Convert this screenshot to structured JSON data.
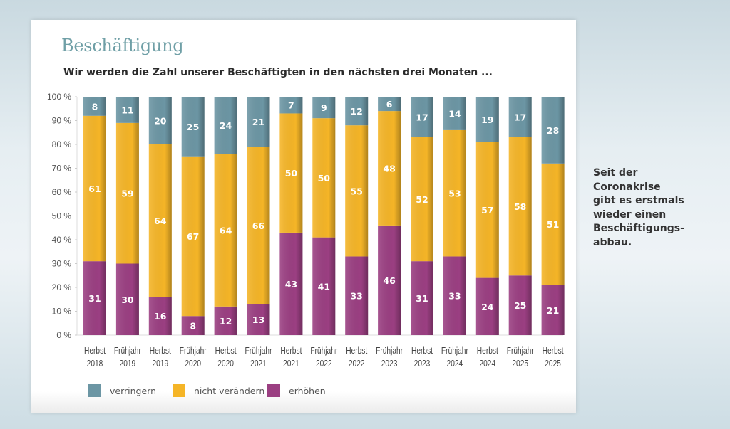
{
  "header": {
    "title": "Beschäftigung",
    "subtitle": "Wir werden die Zahl unserer Beschäftigten in den nächsten drei Monaten ..."
  },
  "side_note": {
    "lines": [
      "Seit der",
      "Coronakrise",
      "gibt es erstmals",
      "wieder einen",
      "Beschäftigungs-",
      "abbau."
    ]
  },
  "chart_data": {
    "type": "bar",
    "stacked": true,
    "title": "Beschäftigung",
    "subtitle": "Wir werden die Zahl unserer Beschäftigten in den nächsten drei Monaten ...",
    "xlabel": "",
    "ylabel": "",
    "ylim": [
      0,
      100
    ],
    "yticks": [
      "0 %",
      "10 %",
      "20 %",
      "30 %",
      "40 %",
      "50 %",
      "60 %",
      "70 %",
      "80 %",
      "90 %",
      "100 %"
    ],
    "grid": false,
    "legend_position": "bottom-left",
    "categories": [
      [
        "Herbst",
        "2018"
      ],
      [
        "Frühjahr",
        "2019"
      ],
      [
        "Herbst",
        "2019"
      ],
      [
        "Frühjahr",
        "2020"
      ],
      [
        "Herbst",
        "2020"
      ],
      [
        "Frühjahr",
        "2021"
      ],
      [
        "Herbst",
        "2021"
      ],
      [
        "Frühjahr",
        "2022"
      ],
      [
        "Herbst",
        "2022"
      ],
      [
        "Frühjahr",
        "2023"
      ],
      [
        "Herbst",
        "2023"
      ],
      [
        "Frühjahr",
        "2024"
      ],
      [
        "Herbst",
        "2024"
      ],
      [
        "Frühjahr",
        "2025"
      ],
      [
        "Herbst",
        "2025"
      ]
    ],
    "series": [
      {
        "name": "erhöhen",
        "color": "#9b3f82",
        "values": [
          31,
          30,
          16,
          8,
          12,
          13,
          43,
          41,
          33,
          46,
          31,
          33,
          24,
          25,
          21
        ]
      },
      {
        "name": "nicht verändern",
        "color": "#f5b527",
        "values": [
          61,
          59,
          64,
          67,
          64,
          66,
          50,
          50,
          55,
          48,
          52,
          53,
          57,
          58,
          51
        ]
      },
      {
        "name": "verringern",
        "color": "#6c96a4",
        "values": [
          8,
          11,
          20,
          25,
          24,
          21,
          7,
          9,
          12,
          6,
          17,
          14,
          19,
          17,
          28
        ]
      }
    ],
    "legend": [
      {
        "label": "verringern",
        "color": "#6c96a4"
      },
      {
        "label": "nicht verändern",
        "color": "#f5b527"
      },
      {
        "label": "erhöhen",
        "color": "#9b3f82"
      }
    ]
  }
}
